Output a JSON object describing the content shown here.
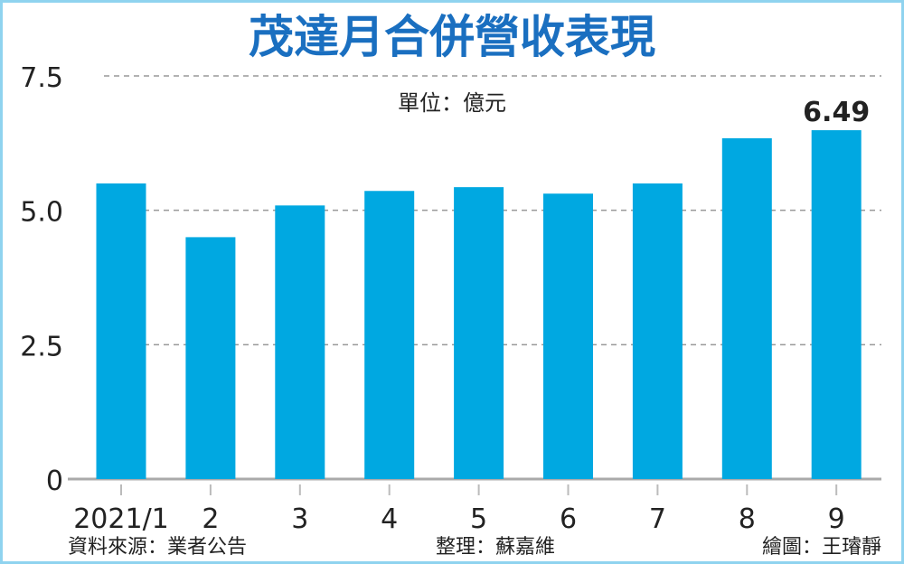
{
  "chart_data": {
    "type": "bar",
    "title": "茂達月合併營收表現",
    "unit_label": "單位：億元",
    "categories": [
      "2021/1",
      "2",
      "3",
      "4",
      "5",
      "6",
      "7",
      "8",
      "9"
    ],
    "values": [
      5.5,
      4.5,
      5.09,
      5.36,
      5.43,
      5.31,
      5.5,
      6.34,
      6.49
    ],
    "data_labels": [
      {
        "index": 8,
        "text": "6.49"
      }
    ],
    "yticks": [
      "0",
      "2.5",
      "5.0",
      "7.5"
    ],
    "ytick_values": [
      0,
      2.5,
      5.0,
      7.5
    ],
    "ylim": [
      0,
      7.5
    ],
    "grid": "horizontal dashed",
    "colors": {
      "bar": "#00a8e1",
      "title": "#1a6fc0",
      "border": "#8fd3ef",
      "grid": "#999999"
    }
  },
  "footer": {
    "source": "資料來源：業者公告",
    "editor": "整理：蘇嘉維",
    "artist": "繪圖：王璿靜"
  }
}
